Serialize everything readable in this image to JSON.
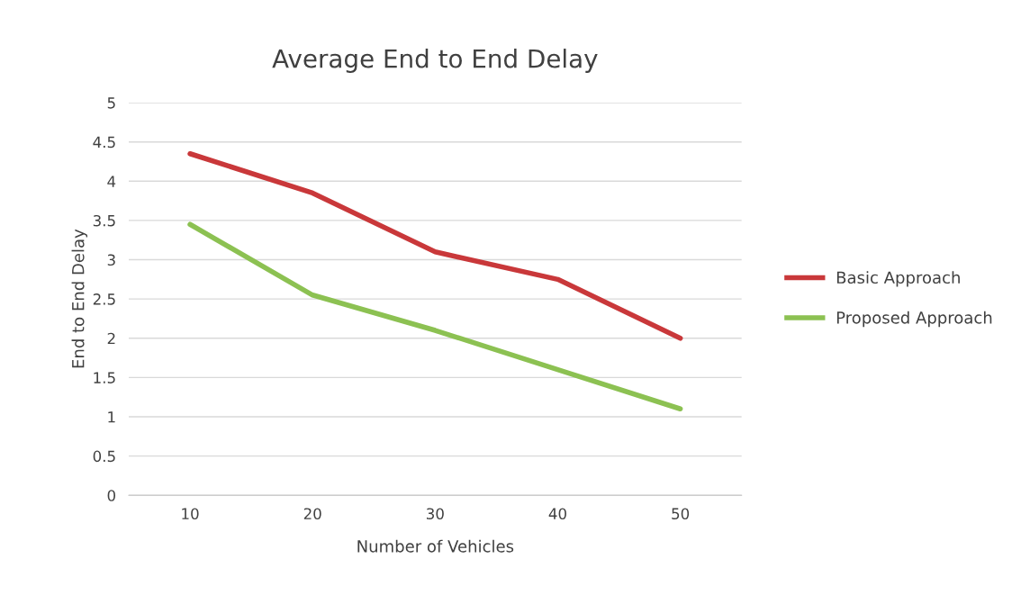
{
  "chart_data": {
    "type": "line",
    "title": "Average End to End Delay",
    "xlabel": "Number of Vehicles",
    "ylabel": "End to End Delay",
    "categories": [
      "10",
      "20",
      "30",
      "40",
      "50"
    ],
    "series": [
      {
        "name": "Basic Approach",
        "color": "#c9383a",
        "values": [
          4.35,
          3.85,
          3.1,
          2.75,
          2.0
        ]
      },
      {
        "name": "Proposed Approach",
        "color": "#8cc152",
        "values": [
          3.45,
          2.55,
          2.1,
          1.6,
          1.1
        ]
      }
    ],
    "ylim": [
      0,
      5
    ],
    "yticks": [
      0,
      0.5,
      1,
      1.5,
      2,
      2.5,
      3,
      3.5,
      4,
      4.5,
      5
    ],
    "grid": "y",
    "legend": "right",
    "marker": "none",
    "line_style": "solid"
  }
}
